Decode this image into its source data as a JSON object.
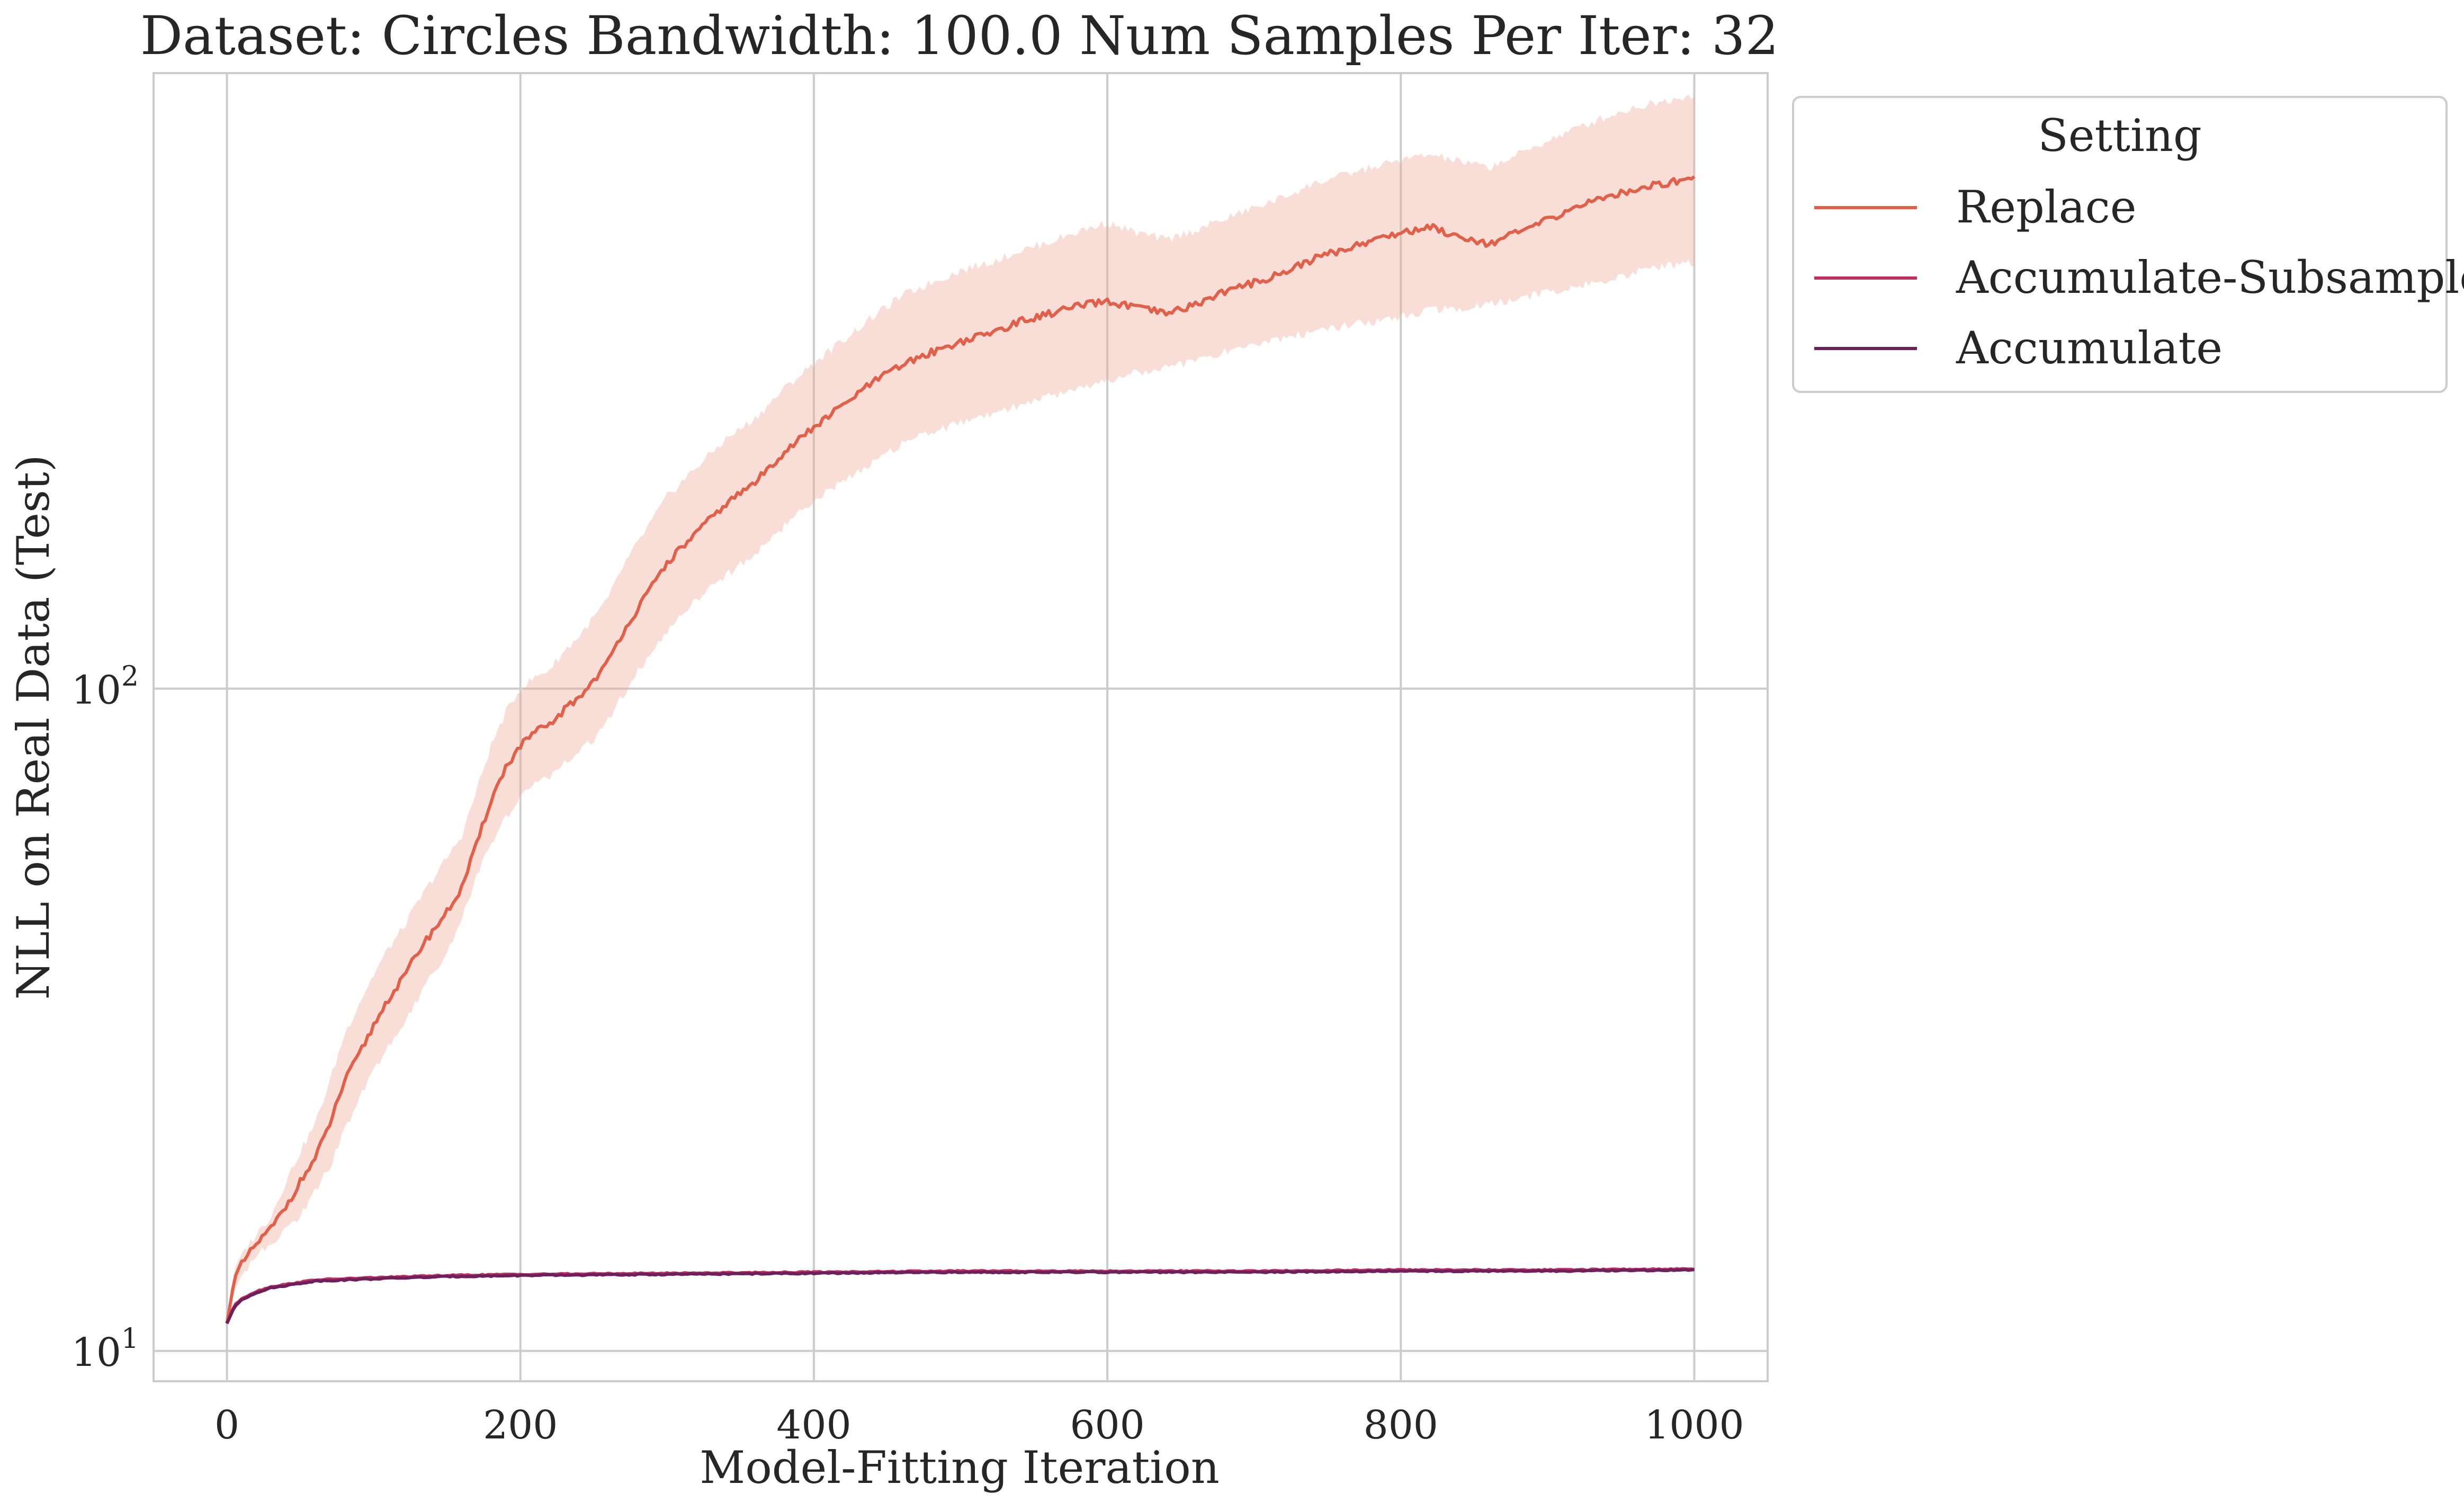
{
  "chart_data": {
    "type": "line",
    "title": "Dataset: Circles Bandwidth: 100.0 Num Samples Per Iter: 32",
    "xlabel": "Model-Fitting Iteration",
    "ylabel": "NLL on Real Data (Test)",
    "xlim": [
      -50,
      1050
    ],
    "ylim": [
      9.0,
      850
    ],
    "yscale": "log",
    "grid": true,
    "x_ticks": [
      0,
      200,
      400,
      600,
      800,
      1000
    ],
    "x_tick_labels": [
      "0",
      "200",
      "400",
      "600",
      "800",
      "1000"
    ],
    "y_ticks": [
      10,
      100
    ],
    "y_tick_labels": [
      {
        "base": "10",
        "exp": "1"
      },
      {
        "base": "10",
        "exp": "2"
      }
    ],
    "legend": {
      "title": "Setting",
      "placement": "outside-top-right",
      "entries": [
        "Replace",
        "Accumulate-Subsample",
        "Accumulate"
      ]
    },
    "series": [
      {
        "name": "Replace",
        "color": "#e0604a",
        "band_color": "#f0a898",
        "x": [
          0,
          5,
          10,
          20,
          30,
          40,
          50,
          60,
          70,
          80,
          90,
          100,
          110,
          120,
          130,
          140,
          150,
          160,
          170,
          180,
          190,
          200,
          210,
          220,
          230,
          240,
          250,
          260,
          270,
          280,
          290,
          300,
          320,
          340,
          360,
          380,
          400,
          420,
          440,
          460,
          480,
          500,
          520,
          540,
          560,
          580,
          600,
          620,
          640,
          660,
          680,
          700,
          720,
          740,
          760,
          780,
          800,
          820,
          840,
          860,
          880,
          900,
          920,
          940,
          960,
          980,
          1000
        ],
        "y": [
          11.0,
          12.8,
          13.5,
          14.5,
          15.3,
          16.5,
          18.0,
          19.5,
          22.0,
          25.5,
          28.0,
          31.0,
          34.0,
          36.5,
          40.0,
          43.0,
          46.0,
          50.0,
          58.0,
          68.0,
          76.0,
          82.0,
          86.0,
          88.0,
          93.0,
          97.0,
          103.0,
          110.0,
          122.0,
          132.0,
          143.0,
          155.0,
          172.0,
          190.0,
          205.0,
          228.0,
          248.0,
          268.0,
          290.0,
          308.0,
          322.0,
          334.0,
          344.0,
          358.0,
          368.0,
          378.0,
          384.0,
          376.0,
          368.0,
          380.0,
          398.0,
          410.0,
          425.0,
          445.0,
          460.0,
          475.0,
          488.0,
          498.0,
          482.0,
          470.0,
          488.0,
          510.0,
          535.0,
          552.0,
          568.0,
          580.0,
          590.0
        ],
        "lower": [
          11.0,
          12.3,
          13.0,
          14.0,
          14.6,
          15.2,
          16.0,
          17.5,
          19.0,
          21.5,
          24.0,
          26.5,
          29.0,
          31.0,
          34.0,
          37.0,
          40.0,
          45.0,
          52.0,
          58.0,
          64.0,
          69.0,
          72.0,
          74.0,
          77.0,
          80.0,
          84.0,
          90.0,
          98.0,
          106.0,
          114.0,
          122.0,
          136.0,
          148.0,
          160.0,
          176.0,
          192.0,
          206.0,
          220.0,
          234.0,
          244.0,
          252.0,
          260.0,
          268.0,
          276.0,
          284.0,
          292.0,
          300.0,
          305.0,
          313.0,
          322.0,
          330.0,
          338.0,
          346.0,
          352.0,
          358.0,
          365.0,
          372.0,
          376.0,
          380.0,
          388.0,
          398.0,
          405.0,
          414.0,
          425.0,
          435.0,
          440.0
        ],
        "upper": [
          11.0,
          13.3,
          14.0,
          15.0,
          16.0,
          18.0,
          20.0,
          22.0,
          25.5,
          30.0,
          33.5,
          37.0,
          40.5,
          43.5,
          47.5,
          51.5,
          55.5,
          60.0,
          70.0,
          82.0,
          92.0,
          100.0,
          104.0,
          107.0,
          114.0,
          120.0,
          128.0,
          137.0,
          153.0,
          166.0,
          180.0,
          195.0,
          216.0,
          238.0,
          256.0,
          284.0,
          310.0,
          336.0,
          364.0,
          392.0,
          410.0,
          428.0,
          440.0,
          458.0,
          472.0,
          490.0,
          505.0,
          488.0,
          476.0,
          492.0,
          512.0,
          532.0,
          552.0,
          578.0,
          595.0,
          612.0,
          628.0,
          640.0,
          625.0,
          612.0,
          640.0,
          672.0,
          702.0,
          730.0,
          755.0,
          772.0,
          790.0
        ]
      },
      {
        "name": "Accumulate-Subsample",
        "color": "#c0305e",
        "x": [
          0,
          5,
          10,
          20,
          30,
          40,
          50,
          60,
          80,
          100,
          150,
          200,
          300,
          400,
          500,
          600,
          700,
          800,
          900,
          1000
        ],
        "y": [
          11.0,
          11.7,
          12.0,
          12.3,
          12.5,
          12.6,
          12.7,
          12.8,
          12.85,
          12.9,
          13.0,
          13.05,
          13.1,
          13.15,
          13.2,
          13.2,
          13.2,
          13.25,
          13.25,
          13.3
        ]
      },
      {
        "name": "Accumulate",
        "color": "#6e1f5d",
        "x": [
          0,
          5,
          10,
          20,
          30,
          40,
          50,
          60,
          80,
          100,
          150,
          200,
          300,
          400,
          500,
          600,
          700,
          800,
          900,
          1000
        ],
        "y": [
          11.0,
          11.65,
          11.95,
          12.25,
          12.45,
          12.55,
          12.65,
          12.75,
          12.8,
          12.85,
          12.95,
          13.0,
          13.05,
          13.1,
          13.15,
          13.15,
          13.15,
          13.2,
          13.2,
          13.25
        ]
      }
    ]
  }
}
